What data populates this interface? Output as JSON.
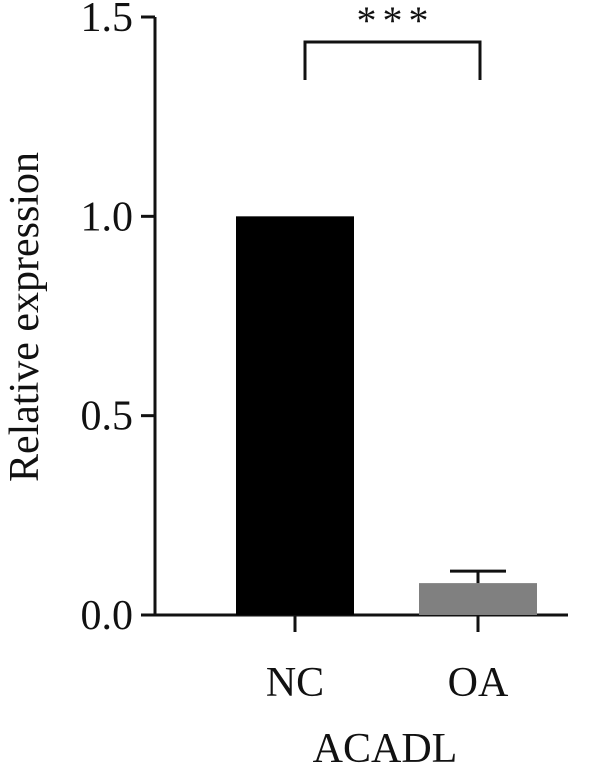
{
  "chart_data": {
    "type": "bar",
    "categories": [
      "NC",
      "OA"
    ],
    "values": [
      1.0,
      0.08
    ],
    "errors": [
      0.0,
      0.03
    ],
    "colors": [
      "#000000",
      "#808080"
    ],
    "xlabel": "ACADL",
    "ylabel": "Relative expression",
    "ylim": [
      0,
      1.5
    ],
    "yticks": [
      0.0,
      0.5,
      1.0,
      1.5
    ],
    "ytick_labels": [
      "0.0",
      "0.5",
      "1.0",
      "1.5"
    ],
    "significance": {
      "label": "***",
      "between": [
        "NC",
        "OA"
      ]
    },
    "grid": false
  }
}
